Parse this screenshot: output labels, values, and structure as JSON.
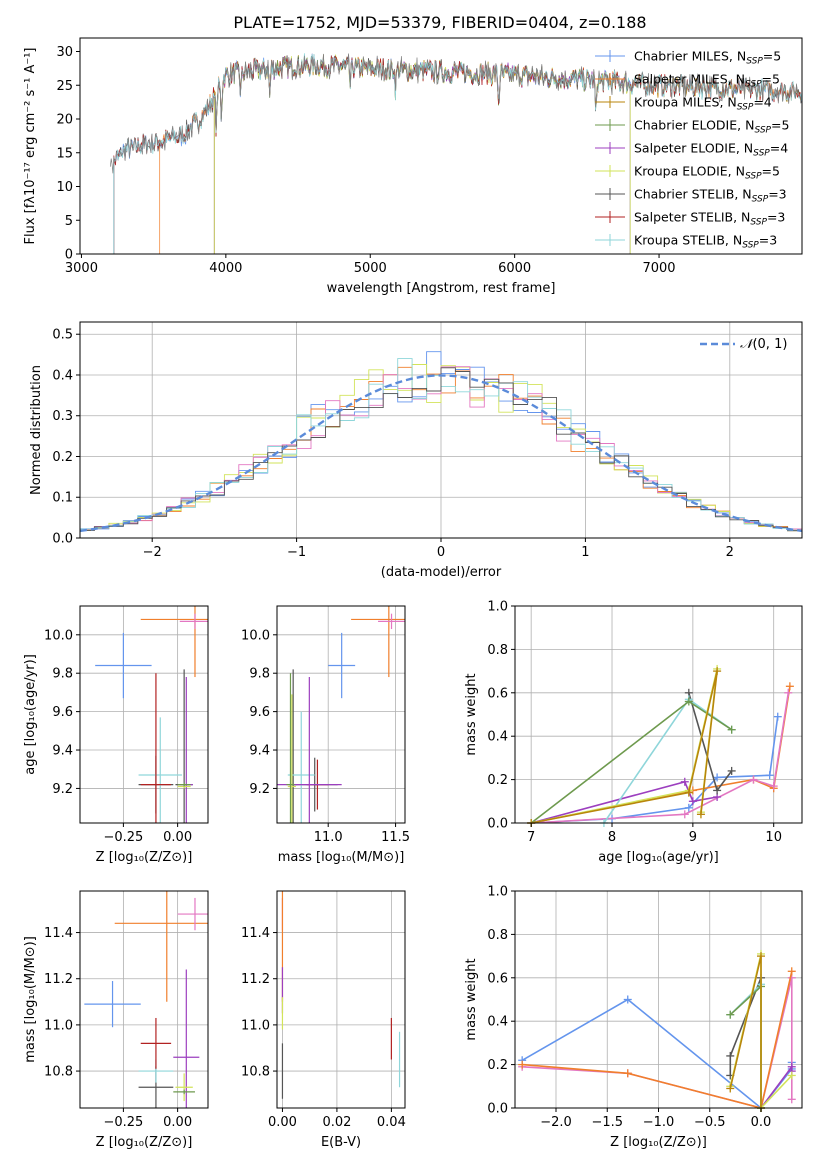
{
  "figure": {
    "title": "PLATE=1752, MJD=53379, FIBERID=0404, z=0.188"
  },
  "colors": {
    "chabrier_miles": "#6495ED",
    "salpeter_miles": "#F07F2C",
    "kroupa_miles": "#B8860B",
    "chabrier_elodie": "#6E9A4E",
    "salpeter_elodie": "#9C3FBF",
    "kroupa_elodie": "#D2E35A",
    "chabrier_stelib": "#555555",
    "salpeter_stelib": "#B22222",
    "kroupa_stelib": "#8FD6DA",
    "pink": "#E377C2",
    "normal_dash": "#5B8BD9"
  },
  "chart_data": [
    {
      "id": "spectrum",
      "type": "line",
      "xlabel": "wavelength [Angstrom, rest frame]",
      "ylabel": "Flux [fλ10⁻¹⁷ erg cm⁻² s⁻¹ A⁻¹]",
      "xlim": [
        2990,
        7990
      ],
      "ylim": [
        0,
        32
      ],
      "xticks": [
        3000,
        4000,
        5000,
        6000,
        7000
      ],
      "yticks": [
        0,
        5,
        10,
        15,
        20,
        25,
        30
      ],
      "grid": false,
      "legend_position": "top-right",
      "series": [
        {
          "name": "Chabrier MILES, N_SSP=5",
          "legend": [
            "Chabrier MILES, N",
            "SSP",
            "=5"
          ],
          "x_start": 3220,
          "x_end": 7990
        },
        {
          "name": "Salpeter MILES, N_SSP=5",
          "legend": [
            "Salpeter MILES, N",
            "SSP",
            "=5"
          ],
          "x_start": 3540,
          "x_end": 7990
        },
        {
          "name": "Kroupa MILES, N_SSP=4",
          "legend": [
            "Kroupa MILES, N",
            "SSP",
            "=4"
          ],
          "x_start": 3920,
          "x_end": 7990
        },
        {
          "name": "Chabrier ELODIE, N_SSP=5",
          "legend": [
            "Chabrier ELODIE, N",
            "SSP",
            "=5"
          ],
          "x_start": 3920,
          "x_end": 6800
        },
        {
          "name": "Salpeter ELODIE, N_SSP=4",
          "legend": [
            "Salpeter ELODIE, N",
            "SSP",
            "=4"
          ],
          "x_start": 3920,
          "x_end": 6800
        },
        {
          "name": "Kroupa ELODIE, N_SSP=5",
          "legend": [
            "Kroupa ELODIE, N",
            "SSP",
            "=5"
          ],
          "x_start": 3920,
          "x_end": 6800
        },
        {
          "name": "Chabrier STELIB, N_SSP=3",
          "legend": [
            "Chabrier STELIB, N",
            "SSP",
            "=3"
          ],
          "x_start": 3220,
          "x_end": 7990
        },
        {
          "name": "Salpeter STELIB, N_SSP=3",
          "legend": [
            "Salpeter STELIB, N",
            "SSP",
            "=3"
          ],
          "x_start": 3220,
          "x_end": 7990
        },
        {
          "name": "Kroupa STELIB, N_SSP=3",
          "legend": [
            "Kroupa STELIB, N",
            "SSP",
            "=3"
          ],
          "x_start": 3220,
          "x_end": 7990
        }
      ],
      "trend_points": {
        "x": [
          3220,
          3300,
          3500,
          3700,
          3800,
          3900,
          4000,
          4300,
          4600,
          5000,
          5500,
          6000,
          6500,
          7000,
          7500,
          7990
        ],
        "y": [
          13.5,
          15.5,
          16.5,
          17.5,
          19.5,
          22.5,
          26.5,
          27.5,
          28.0,
          27.5,
          27.0,
          26.5,
          25.8,
          25.0,
          24.5,
          24.0
        ]
      }
    },
    {
      "id": "residuals",
      "type": "histogram",
      "xlabel": "(data-model)/error",
      "ylabel": "Normed distribution",
      "xlim": [
        -2.5,
        2.5
      ],
      "ylim": [
        0,
        0.53
      ],
      "xticks": [
        -2,
        -1,
        0,
        1,
        2
      ],
      "yticks": [
        0.0,
        0.1,
        0.2,
        0.3,
        0.4,
        0.5
      ],
      "grid": true,
      "legend_position": "top-right",
      "normal_curve": {
        "name": "N(0,1)",
        "legend_main": "𝒩",
        "legend_rest": "(0, 1)",
        "mu": 0,
        "sigma": 1
      },
      "bin_width": 0.1
    },
    {
      "id": "age_vs_Z",
      "type": "errorbar",
      "xlabel": "Z [log₁₀(Z/Z⊙)]",
      "ylabel": "age  [log₁₀(age/yr)]",
      "xlim": [
        -0.45,
        0.14
      ],
      "ylim": [
        9.02,
        10.15
      ],
      "xticks": [
        -0.25,
        0.0
      ],
      "xtick_labels": [
        "−0.25",
        "0.00"
      ],
      "yticks": [
        9.2,
        9.4,
        9.6,
        9.8,
        10.0
      ],
      "grid": true,
      "points": [
        {
          "color": "#6495ED",
          "x": -0.25,
          "xerr": 0.13,
          "y": 9.84,
          "yerr": 0.17
        },
        {
          "color": "#F07F2C",
          "x": 0.08,
          "xerr": 0.25,
          "y": 10.08,
          "yerr": 0.3
        },
        {
          "color": "#E377C2",
          "x": 0.08,
          "xerr": 0.07,
          "y": 10.07,
          "yerr": 0.04
        },
        {
          "color": "#555555",
          "x": -0.1,
          "xerr": 0.08,
          "y": 9.22,
          "yerr": 0.15
        },
        {
          "color": "#555555",
          "x": 0.03,
          "xerr": 0.04,
          "y": 9.22,
          "yerr": 0.6
        },
        {
          "color": "#8FD6DA",
          "x": -0.08,
          "xerr": 0.1,
          "y": 9.27,
          "yerr": 0.3
        },
        {
          "color": "#B22222",
          "x": -0.1,
          "xerr": 0.07,
          "y": 9.22,
          "yerr": 0.58
        },
        {
          "color": "#9C3FBF",
          "x": 0.04,
          "xerr": 0.03,
          "y": 9.22,
          "yerr": 0.56
        },
        {
          "color": "#D2E35A",
          "x": 0.03,
          "xerr": 0.03,
          "y": 9.21,
          "yerr": 0.01
        },
        {
          "color": "#6E9A4E",
          "x": 0.03,
          "xerr": 0.03,
          "y": 9.22,
          "yerr": 0.01
        }
      ]
    },
    {
      "id": "age_vs_mass",
      "type": "errorbar",
      "xlabel": "mass [log₁₀(M/M⊙)]",
      "ylabel": "",
      "xlim": [
        10.62,
        11.57
      ],
      "ylim": [
        9.02,
        10.15
      ],
      "xticks": [
        11.0,
        11.5
      ],
      "xtick_labels": [
        "11.0",
        "11.5"
      ],
      "yticks": [
        9.2,
        9.4,
        9.6,
        9.8,
        10.0
      ],
      "grid": true,
      "points": [
        {
          "color": "#6495ED",
          "x": 11.1,
          "xerr": 0.1,
          "y": 9.84,
          "yerr": 0.17
        },
        {
          "color": "#F07F2C",
          "x": 11.45,
          "xerr": 0.28,
          "y": 10.08,
          "yerr": 0.3
        },
        {
          "color": "#E377C2",
          "x": 11.47,
          "xerr": 0.1,
          "y": 10.07,
          "yerr": 0.04
        },
        {
          "color": "#555555",
          "x": 10.74,
          "xerr": 0.03,
          "y": 9.22,
          "yerr": 0.6
        },
        {
          "color": "#555555",
          "x": 10.9,
          "xerr": 0.17,
          "y": 9.22,
          "yerr": 0.14
        },
        {
          "color": "#8FD6DA",
          "x": 10.8,
          "xerr": 0.1,
          "y": 9.27,
          "yerr": 0.33
        },
        {
          "color": "#B22222",
          "x": 10.92,
          "xerr": 0.08,
          "y": 9.22,
          "yerr": 0.13
        },
        {
          "color": "#9C3FBF",
          "x": 10.86,
          "xerr": 0.24,
          "y": 9.22,
          "yerr": 0.56
        },
        {
          "color": "#D2E35A",
          "x": 10.73,
          "xerr": 0.03,
          "y": 9.21,
          "yerr": 0.48
        },
        {
          "color": "#6E9A4E",
          "x": 10.72,
          "xerr": 0.03,
          "y": 9.22,
          "yerr": 0.58
        }
      ]
    },
    {
      "id": "massweight_vs_age",
      "type": "line",
      "xlabel": "age  [log₁₀(age/yr)]",
      "ylabel": "mass weight",
      "xlim": [
        6.8,
        10.35
      ],
      "ylim": [
        0,
        1
      ],
      "xticks": [
        7,
        8,
        9,
        10
      ],
      "yticks": [
        0.0,
        0.2,
        0.4,
        0.6,
        0.8,
        1.0
      ],
      "grid": true,
      "series": [
        {
          "color": "#6495ED",
          "x": [
            7.0,
            8.0,
            8.95,
            9.3,
            9.95,
            10.05
          ],
          "y": [
            0.0,
            0.02,
            0.07,
            0.21,
            0.22,
            0.49
          ]
        },
        {
          "color": "#F07F2C",
          "x": [
            7.0,
            9.0,
            9.75,
            10.0,
            10.2
          ],
          "y": [
            0.0,
            0.15,
            0.2,
            0.16,
            0.63
          ]
        },
        {
          "color": "#E377C2",
          "x": [
            7.0,
            8.9,
            9.75,
            10.0,
            10.18
          ],
          "y": [
            0.0,
            0.04,
            0.2,
            0.17,
            0.6
          ]
        },
        {
          "color": "#9C3FBF",
          "x": [
            7.0,
            8.9,
            9.0,
            9.3
          ],
          "y": [
            0.0,
            0.19,
            0.1,
            0.12
          ]
        },
        {
          "color": "#555555",
          "x": [
            8.95,
            9.3,
            9.48
          ],
          "y": [
            0.6,
            0.15,
            0.24
          ]
        },
        {
          "color": "#8FD6DA",
          "x": [
            7.9,
            8.95,
            9.48
          ],
          "y": [
            0.0,
            0.57,
            0.43
          ]
        },
        {
          "color": "#6E9A4E",
          "x": [
            7.0,
            8.95,
            9.48
          ],
          "y": [
            0.0,
            0.56,
            0.43
          ]
        },
        {
          "color": "#D2E35A",
          "x": [
            7.0,
            8.95,
            9.3,
            9.1
          ],
          "y": [
            0.0,
            0.15,
            0.71,
            0.05
          ]
        },
        {
          "color": "#B8860B",
          "x": [
            7.0,
            8.95,
            9.3,
            9.1
          ],
          "y": [
            0.0,
            0.14,
            0.7,
            0.04
          ]
        }
      ]
    },
    {
      "id": "mass_vs_Z",
      "type": "errorbar",
      "xlabel": "Z [log₁₀(Z/Z⊙)]",
      "ylabel": "mass [log₁₀(M/M⊙)]",
      "xlim": [
        -0.45,
        0.14
      ],
      "ylim": [
        10.64,
        11.58
      ],
      "xticks": [
        -0.25,
        0.0
      ],
      "xtick_labels": [
        "−0.25",
        "0.00"
      ],
      "yticks": [
        10.8,
        11.0,
        11.2,
        11.4
      ],
      "grid": true,
      "points": [
        {
          "color": "#6495ED",
          "x": -0.3,
          "xerr": 0.13,
          "y": 11.09,
          "yerr": 0.1
        },
        {
          "color": "#F07F2C",
          "x": -0.05,
          "xerr": 0.24,
          "y": 11.44,
          "yerr": 0.34
        },
        {
          "color": "#E377C2",
          "x": 0.08,
          "xerr": 0.08,
          "y": 11.48,
          "yerr": 0.07
        },
        {
          "color": "#555555",
          "x": -0.1,
          "xerr": 0.08,
          "y": 10.73,
          "yerr": 0.09
        },
        {
          "color": "#8FD6DA",
          "x": -0.1,
          "xerr": 0.08,
          "y": 10.8,
          "yerr": 0.05
        },
        {
          "color": "#B22222",
          "x": -0.1,
          "xerr": 0.07,
          "y": 10.92,
          "yerr": 0.11
        },
        {
          "color": "#9C3FBF",
          "x": 0.04,
          "xerr": 0.06,
          "y": 10.86,
          "yerr": 0.38
        },
        {
          "color": "#D2E35A",
          "x": 0.03,
          "xerr": 0.04,
          "y": 10.73,
          "yerr": 0.06
        },
        {
          "color": "#6E9A4E",
          "x": 0.03,
          "xerr": 0.05,
          "y": 10.71,
          "yerr": 0.01
        }
      ]
    },
    {
      "id": "mass_vs_ebv",
      "type": "errorbar",
      "xlabel": "E(B-V)",
      "ylabel": "",
      "xlim": [
        -0.002,
        0.045
      ],
      "ylim": [
        10.64,
        11.58
      ],
      "xticks": [
        0.0,
        0.02,
        0.04
      ],
      "xtick_labels": [
        "0.00",
        "0.02",
        "0.04"
      ],
      "yticks": [
        10.8,
        11.0,
        11.2,
        11.4
      ],
      "grid": true,
      "points": [
        {
          "color": "#E377C2",
          "x": 0.0,
          "xerr": 0,
          "y": 11.48,
          "yerr": 0.07
        },
        {
          "color": "#F07F2C",
          "x": 0.0,
          "xerr": 0,
          "y": 11.44,
          "yerr": 0.34
        },
        {
          "color": "#9C3FBF",
          "x": 0.0,
          "xerr": 0,
          "y": 11.15,
          "yerr": 0.1
        },
        {
          "color": "#D2E35A",
          "x": 0.0,
          "xerr": 0,
          "y": 11.05,
          "yerr": 0.07
        },
        {
          "color": "#555555",
          "x": 0.0,
          "xerr": 0,
          "y": 10.8,
          "yerr": 0.12
        },
        {
          "color": "#B22222",
          "x": 0.04,
          "xerr": 0,
          "y": 10.94,
          "yerr": 0.09
        },
        {
          "color": "#8FD6DA",
          "x": 0.043,
          "xerr": 0,
          "y": 10.85,
          "yerr": 0.12
        }
      ]
    },
    {
      "id": "massweight_vs_Z",
      "type": "line",
      "xlabel": "Z [log₁₀(Z/Z⊙)]",
      "ylabel": "mass weight",
      "xlim": [
        -2.4,
        0.4
      ],
      "ylim": [
        0,
        1
      ],
      "xticks": [
        -2.0,
        -1.5,
        -1.0,
        -0.5,
        0.0
      ],
      "xtick_labels": [
        "−2.0",
        "−1.5",
        "−1.0",
        "−0.5",
        "0.0"
      ],
      "yticks": [
        0.0,
        0.2,
        0.4,
        0.6,
        0.8,
        1.0
      ],
      "grid": true,
      "series": [
        {
          "color": "#6495ED",
          "x": [
            -2.33,
            -1.3,
            0.0,
            0.3,
            0.3
          ],
          "y": [
            0.22,
            0.5,
            0.0,
            0.18,
            0.21
          ]
        },
        {
          "color": "#E377C2",
          "x": [
            -2.33,
            -1.3,
            0.0,
            0.3,
            0.3
          ],
          "y": [
            0.19,
            0.16,
            0.0,
            0.6,
            0.04
          ]
        },
        {
          "color": "#F07F2C",
          "x": [
            -2.33,
            -1.3,
            0.0,
            0.3
          ],
          "y": [
            0.2,
            0.16,
            0.0,
            0.63
          ]
        },
        {
          "color": "#9C3FBF",
          "x": [
            0.0,
            0.3,
            0.3
          ],
          "y": [
            0.0,
            0.19,
            0.17
          ]
        },
        {
          "color": "#555555",
          "x": [
            -0.3,
            -0.3,
            0.0,
            0.0
          ],
          "y": [
            0.15,
            0.24,
            0.6,
            0.0
          ]
        },
        {
          "color": "#8FD6DA",
          "x": [
            -0.3,
            0.0,
            0.0
          ],
          "y": [
            0.43,
            0.57,
            0.0
          ]
        },
        {
          "color": "#6E9A4E",
          "x": [
            -0.3,
            0.0,
            0.0
          ],
          "y": [
            0.43,
            0.56,
            0.0
          ]
        },
        {
          "color": "#D2E35A",
          "x": [
            -0.3,
            0.0,
            0.0,
            0.3
          ],
          "y": [
            0.1,
            0.71,
            0.0,
            0.15
          ]
        },
        {
          "color": "#B8860B",
          "x": [
            -0.3,
            0.0,
            0.0
          ],
          "y": [
            0.09,
            0.7,
            0.0
          ]
        }
      ]
    }
  ]
}
